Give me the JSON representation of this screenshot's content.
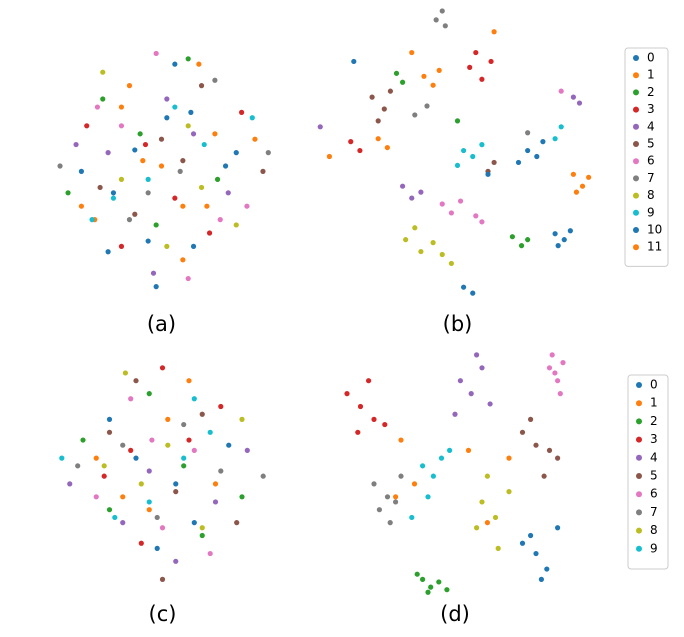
{
  "chart_data": [
    {
      "type": "scatter",
      "title": "(a)",
      "xlim": [
        0,
        100
      ],
      "ylim": [
        0,
        100
      ],
      "series": [
        {
          "color": "#1f77b4",
          "x": [
            32,
            61,
            45,
            78,
            20,
            55
          ],
          "y": [
            40,
            70,
            22,
            55,
            48,
            88
          ]
        },
        {
          "color": "#ff7f0e",
          "x": [
            50,
            38,
            67,
            25,
            85,
            58
          ],
          "y": [
            50,
            80,
            35,
            30,
            60,
            15
          ]
        },
        {
          "color": "#2ca02c",
          "x": [
            42,
            71,
            28,
            60,
            15,
            48
          ],
          "y": [
            62,
            45,
            75,
            90,
            40,
            28
          ]
        },
        {
          "color": "#d62728",
          "x": [
            55,
            35,
            80,
            44,
            68,
            22
          ],
          "y": [
            38,
            20,
            70,
            58,
            25,
            65
          ]
        },
        {
          "color": "#9467bd",
          "x": [
            30,
            62,
            47,
            75,
            18,
            52
          ],
          "y": [
            55,
            62,
            10,
            40,
            58,
            75
          ]
        },
        {
          "color": "#8c564b",
          "x": [
            65,
            27,
            50,
            88,
            40,
            58
          ],
          "y": [
            80,
            42,
            60,
            48,
            32,
            52
          ]
        },
        {
          "color": "#e377c2",
          "x": [
            48,
            72,
            35,
            60,
            26,
            82
          ],
          "y": [
            92,
            30,
            65,
            8,
            72,
            35
          ]
        },
        {
          "color": "#7f7f7f",
          "x": [
            38,
            57,
            70,
            45,
            12,
            90
          ],
          "y": [
            30,
            48,
            82,
            40,
            50,
            55
          ]
        },
        {
          "color": "#bcbd22",
          "x": [
            60,
            28,
            52,
            78,
            35,
            65
          ],
          "y": [
            65,
            85,
            20,
            28,
            45,
            42
          ]
        },
        {
          "color": "#17becf",
          "x": [
            45,
            66,
            32,
            55,
            84,
            24
          ],
          "y": [
            45,
            58,
            38,
            72,
            68,
            30
          ]
        },
        {
          "color": "#1f77b4",
          "x": [
            52,
            40,
            74,
            30,
            62,
            48
          ],
          "y": [
            68,
            56,
            50,
            18,
            20,
            5
          ]
        },
        {
          "color": "#ff7f0e",
          "x": [
            35,
            58,
            43,
            70,
            20,
            64
          ],
          "y": [
            72,
            35,
            52,
            62,
            35,
            88
          ]
        }
      ]
    },
    {
      "type": "scatter",
      "title": "(b)",
      "xlim": [
        0,
        100
      ],
      "ylim": [
        0,
        100
      ],
      "legend": "right",
      "series": [
        {
          "name": "0",
          "color": "#1f77b4",
          "x": [
            82,
            85,
            87,
            83,
            52,
            55
          ],
          "y": [
            24,
            22,
            25,
            20,
            6,
            4
          ]
        },
        {
          "name": "1",
          "color": "#ff7f0e",
          "x": [
            88,
            91,
            93,
            89,
            24,
            27
          ],
          "y": [
            44,
            40,
            43,
            38,
            56,
            53
          ]
        },
        {
          "name": "2",
          "color": "#2ca02c",
          "x": [
            68,
            71,
            73,
            30,
            32,
            50
          ],
          "y": [
            23,
            20,
            22,
            78,
            75,
            62
          ]
        },
        {
          "name": "3",
          "color": "#d62728",
          "x": [
            54,
            58,
            61,
            56,
            15,
            18
          ],
          "y": [
            80,
            76,
            82,
            85,
            55,
            52
          ]
        },
        {
          "name": "4",
          "color": "#9467bd",
          "x": [
            32,
            35,
            38,
            88,
            90,
            5
          ],
          "y": [
            40,
            36,
            38,
            70,
            68,
            60
          ]
        },
        {
          "name": "5",
          "color": "#8c564b",
          "x": [
            22,
            26,
            28,
            24,
            60,
            62
          ],
          "y": [
            70,
            66,
            72,
            62,
            45,
            48
          ]
        },
        {
          "name": "6",
          "color": "#e377c2",
          "x": [
            45,
            48,
            51,
            56,
            84,
            58
          ],
          "y": [
            34,
            31,
            35,
            30,
            72,
            28
          ]
        },
        {
          "name": "7",
          "color": "#7f7f7f",
          "x": [
            43,
            46,
            45,
            36,
            40,
            73
          ],
          "y": [
            96,
            94,
            99,
            64,
            67,
            58
          ]
        },
        {
          "name": "8",
          "color": "#bcbd22",
          "x": [
            33,
            38,
            42,
            45,
            36,
            48
          ],
          "y": [
            22,
            18,
            21,
            17,
            26,
            14
          ]
        },
        {
          "name": "9",
          "color": "#17becf",
          "x": [
            52,
            55,
            58,
            50,
            84,
            82
          ],
          "y": [
            52,
            50,
            54,
            47,
            60,
            56
          ]
        },
        {
          "name": "10",
          "color": "#1f77b4",
          "x": [
            73,
            76,
            78,
            70,
            16,
            60
          ],
          "y": [
            52,
            50,
            55,
            48,
            82,
            44
          ]
        },
        {
          "name": "11",
          "color": "#ff7f0e",
          "x": [
            39,
            42,
            44,
            35,
            62,
            8
          ],
          "y": [
            77,
            74,
            79,
            85,
            92,
            50
          ]
        }
      ]
    },
    {
      "type": "scatter",
      "title": "(c)",
      "xlim": [
        0,
        100
      ],
      "ylim": [
        0,
        100
      ],
      "series": [
        {
          "color": "#1f77b4",
          "x": [
            40,
            62,
            30,
            55,
            75,
            48
          ],
          "y": [
            55,
            30,
            70,
            45,
            60,
            20
          ]
        },
        {
          "color": "#ff7f0e",
          "x": [
            52,
            35,
            70,
            25,
            60,
            45
          ],
          "y": [
            70,
            40,
            45,
            55,
            85,
            35
          ]
        },
        {
          "color": "#2ca02c",
          "x": [
            30,
            58,
            45,
            80,
            20,
            65
          ],
          "y": [
            35,
            52,
            80,
            40,
            62,
            25
          ]
        },
        {
          "color": "#d62728",
          "x": [
            60,
            42,
            28,
            72,
            50,
            38
          ],
          "y": [
            62,
            22,
            48,
            75,
            90,
            58
          ]
        },
        {
          "color": "#9467bd",
          "x": [
            45,
            70,
            35,
            55,
            15,
            82
          ],
          "y": [
            50,
            38,
            30,
            15,
            45,
            58
          ]
        },
        {
          "color": "#8c564b",
          "x": [
            55,
            30,
            65,
            40,
            78,
            50
          ],
          "y": [
            42,
            65,
            72,
            85,
            30,
            8
          ]
        },
        {
          "color": "#e377c2",
          "x": [
            38,
            62,
            50,
            25,
            68,
            46
          ],
          "y": [
            78,
            58,
            28,
            40,
            18,
            62
          ]
        },
        {
          "color": "#7f7f7f",
          "x": [
            48,
            72,
            35,
            58,
            18,
            88
          ],
          "y": [
            32,
            50,
            60,
            68,
            52,
            48
          ]
        },
        {
          "color": "#bcbd22",
          "x": [
            42,
            65,
            28,
            52,
            80,
            36
          ],
          "y": [
            45,
            28,
            52,
            60,
            70,
            88
          ]
        },
        {
          "color": "#17becf",
          "x": [
            58,
            32,
            68,
            45,
            12,
            62
          ],
          "y": [
            55,
            32,
            65,
            38,
            55,
            78
          ]
        }
      ]
    },
    {
      "type": "scatter",
      "title": "(d)",
      "xlim": [
        0,
        100
      ],
      "ylim": [
        0,
        100
      ],
      "legend": "right",
      "series": [
        {
          "name": "0",
          "color": "#1f77b4",
          "x": [
            75,
            80,
            78,
            84,
            82,
            88
          ],
          "y": [
            22,
            18,
            25,
            12,
            8,
            28
          ]
        },
        {
          "name": "1",
          "color": "#ff7f0e",
          "x": [
            30,
            55,
            62,
            35,
            70,
            28
          ],
          "y": [
            62,
            58,
            30,
            45,
            55,
            40
          ]
        },
        {
          "name": "2",
          "color": "#2ca02c",
          "x": [
            38,
            41,
            44,
            40,
            36,
            47
          ],
          "y": [
            8,
            5,
            7,
            3,
            10,
            4
          ]
        },
        {
          "name": "3",
          "color": "#d62728",
          "x": [
            10,
            15,
            20,
            24,
            14,
            18
          ],
          "y": [
            80,
            75,
            70,
            68,
            65,
            85
          ]
        },
        {
          "name": "4",
          "color": "#9467bd",
          "x": [
            52,
            56,
            60,
            63,
            50,
            58
          ],
          "y": [
            85,
            80,
            90,
            76,
            72,
            95
          ]
        },
        {
          "name": "5",
          "color": "#8c564b",
          "x": [
            75,
            80,
            85,
            78,
            88,
            83
          ],
          "y": [
            65,
            60,
            58,
            70,
            55,
            48
          ]
        },
        {
          "name": "6",
          "color": "#e377c2",
          "x": [
            85,
            88,
            90,
            87,
            89,
            86
          ],
          "y": [
            90,
            85,
            92,
            88,
            80,
            95
          ]
        },
        {
          "name": "7",
          "color": "#7f7f7f",
          "x": [
            20,
            25,
            28,
            22,
            30,
            26
          ],
          "y": [
            45,
            40,
            38,
            35,
            48,
            30
          ]
        },
        {
          "name": "8",
          "color": "#bcbd22",
          "x": [
            60,
            65,
            58,
            70,
            66,
            62
          ],
          "y": [
            38,
            32,
            28,
            42,
            20,
            48
          ]
        },
        {
          "name": "9",
          "color": "#17becf",
          "x": [
            38,
            42,
            45,
            40,
            34,
            48
          ],
          "y": [
            52,
            48,
            55,
            40,
            32,
            58
          ]
        }
      ]
    }
  ]
}
